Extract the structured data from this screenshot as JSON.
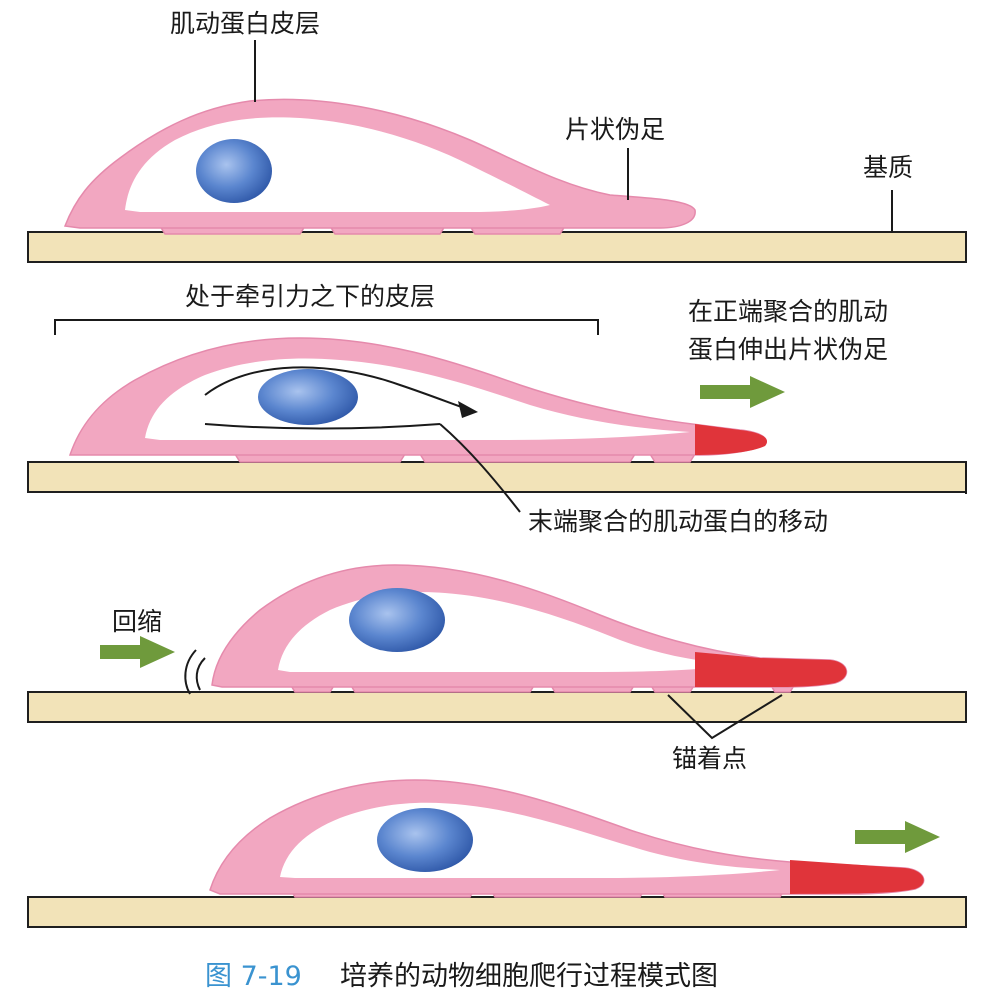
{
  "colors": {
    "cortex": "#f2a7c1",
    "cytoplasm": "#ffffff",
    "nucleus": "#4d7bc6",
    "actin": "#e0343a",
    "substrate": "#f2e3b8",
    "arrow": "#6f9a3c",
    "caption_number": "#3a93d0"
  },
  "labels": {
    "cortex": "肌动蛋白皮层",
    "lamellipodium": "片状伪足",
    "substrate": "基质",
    "tension_cortex": "处于牵引力之下的皮层",
    "extension_line1": "在正端聚合的肌动",
    "extension_line2": "蛋白伸出片状伪足",
    "actin_movement": "末端聚合的肌动蛋白的移动",
    "retraction": "回缩",
    "anchor_points": "锚着点"
  },
  "caption": {
    "number": "图 7-19",
    "text": "培养的动物细胞爬行过程模式图"
  },
  "icons": {
    "arrow": "right-arrow-icon",
    "retraction_mark": "retraction-arc-icon"
  }
}
